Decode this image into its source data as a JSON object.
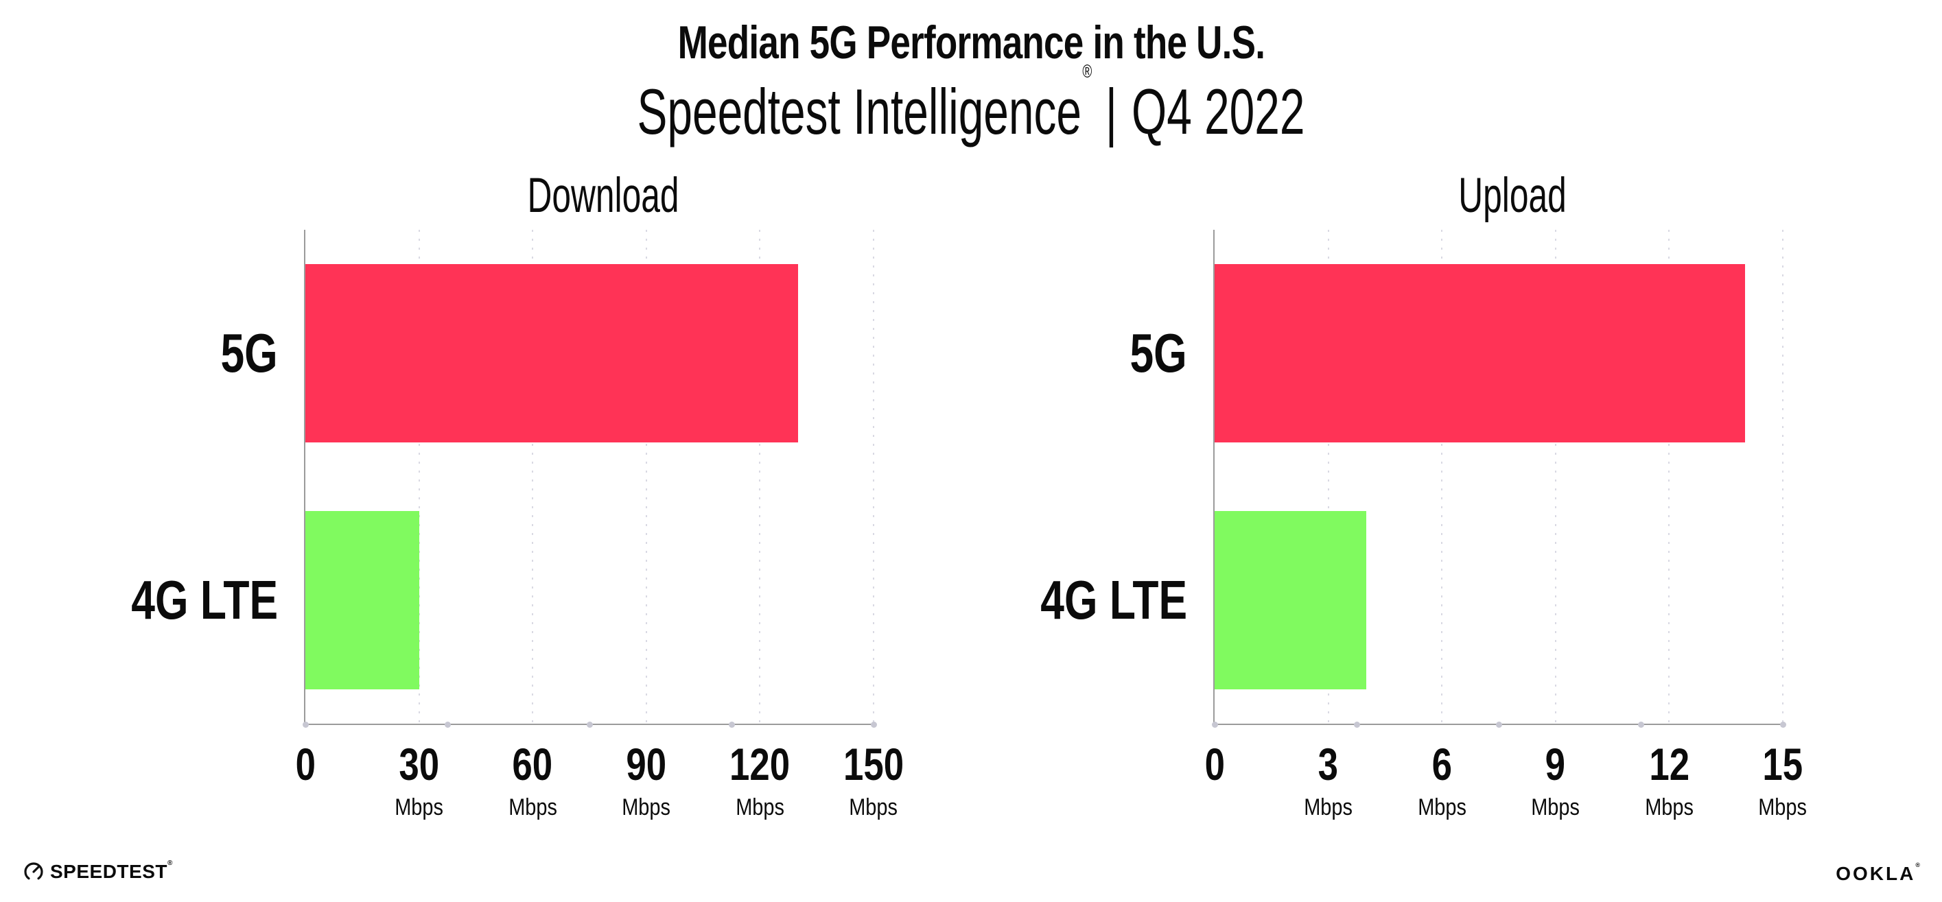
{
  "header": {
    "title": "Median 5G Performance in the U.S.",
    "subtitle_brand": "Speedtest Intelligence",
    "subtitle_mark": "®",
    "subtitle_separator": "|",
    "subtitle_period": "Q4 2022"
  },
  "chart_data": [
    {
      "type": "bar",
      "orientation": "horizontal",
      "title": "Download",
      "unit": "Mbps",
      "categories": [
        "5G",
        "4G LTE"
      ],
      "values": [
        130,
        30
      ],
      "xlim": [
        0,
        150
      ],
      "xticks": [
        0,
        30,
        60,
        90,
        120,
        150
      ],
      "grid": "dotted-vertical",
      "legend": "none",
      "series_colors": [
        "#FF3356",
        "#80FA5F"
      ]
    },
    {
      "type": "bar",
      "orientation": "horizontal",
      "title": "Upload",
      "unit": "Mbps",
      "categories": [
        "5G",
        "4G LTE"
      ],
      "values": [
        14,
        4
      ],
      "xlim": [
        0,
        15
      ],
      "xticks": [
        0,
        3,
        6,
        9,
        12,
        15
      ],
      "grid": "dotted-vertical",
      "legend": "none",
      "series_colors": [
        "#FF3356",
        "#80FA5F"
      ]
    }
  ],
  "colors": {
    "bar_5g": "#FF3356",
    "bar_4g_lte": "#80FA5F",
    "axis": "#9B9B9B",
    "gridline": "#D9D9E3",
    "text": "#0B0B0B",
    "background": "#FFFFFF"
  },
  "footer": {
    "speedtest_label": "SPEEDTEST",
    "speedtest_mark": "®",
    "ookla_label": "OOKLA",
    "ookla_mark": "®"
  }
}
